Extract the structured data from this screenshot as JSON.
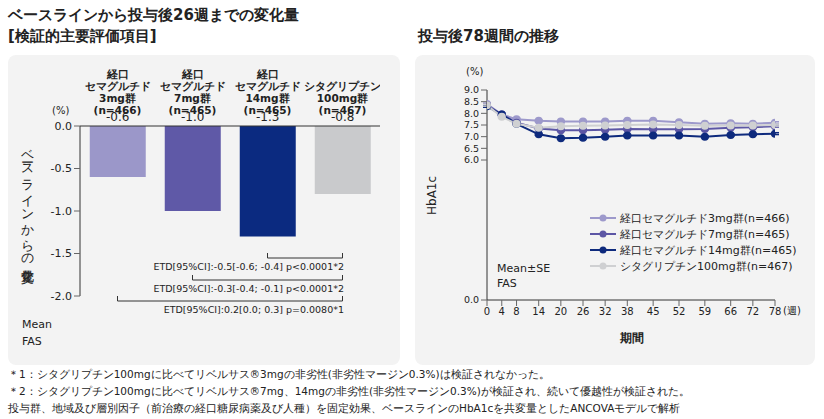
{
  "chart_data": [
    {
      "type": "bar",
      "title": "ベースラインから投与後26週までの変化量",
      "subtitle": "[検証的主要評価項目]",
      "categories": [
        "経口\nセマグルチド\n3mg群\n(n=466)",
        "経口\nセマグルチド\n7mg群\n(n=465)",
        "経口\nセマグルチド\n14mg群\n(n=465)",
        "シタグリプチン\n100mg群\n(n=467)"
      ],
      "values": [
        -0.6,
        -1.0,
        -1.3,
        -0.8
      ],
      "value_labels": [
        "-0.6",
        "-1.0",
        "-1.3",
        "-0.8"
      ],
      "colors": [
        "#9b97c9",
        "#5f59a7",
        "#0b2a80",
        "#c9cacc"
      ],
      "ylim": [
        -2.0,
        0.0
      ],
      "yticks": [
        {
          "value": 0,
          "label": "0.0"
        },
        -0.5,
        {
          "value": -1,
          "label": "-1.0"
        },
        -1.5,
        {
          "value": -2,
          "label": "-2.0"
        }
      ],
      "y_label": "ベースラインからの変化量",
      "y_unit": "(%)",
      "grid": false,
      "data_labels": true,
      "annotations": [
        "Mean",
        "FAS"
      ],
      "comparisons": [
        "ETD[95%CI]:-0.5[-0.6; -0.4] p<0.0001*2",
        "ETD[95%CI]:-0.3[-0.4; -0.1] p<0.0001*2",
        "ETD[95%CI]:0.2[0.0; 0.3] p=0.0080*1"
      ]
    },
    {
      "type": "line",
      "title": "投与後78週間の推移",
      "x": [
        0,
        4,
        8,
        14,
        20,
        26,
        32,
        38,
        45,
        52,
        59,
        66,
        72,
        78
      ],
      "xlim": [
        0,
        78
      ],
      "xticks": [
        0,
        4,
        8,
        14,
        20,
        26,
        32,
        38,
        45,
        52,
        59,
        66,
        72,
        78
      ],
      "x_label": "期間",
      "x_unit": "(週)",
      "ylim": [
        0,
        9.0
      ],
      "yticks": [
        {
          "value": 0,
          "label": "0.0"
        },
        {
          "value": 6,
          "label": "6.0"
        },
        6.5,
        {
          "value": 7,
          "label": "7.0"
        },
        7.5,
        {
          "value": 8,
          "label": "8.0"
        },
        8.5,
        {
          "value": 9,
          "label": "9.0"
        }
      ],
      "y_label": "HbA1c",
      "y_unit": "(%)",
      "grid": false,
      "marker": "circle",
      "legend": "lower right",
      "annotations": [
        "Mean±SE",
        "FAS"
      ],
      "series": [
        {
          "name": "経口セマグルチド3mg群(n=466)",
          "color": "#9d99cb",
          "values": [
            8.4,
            7.95,
            7.75,
            7.68,
            7.65,
            7.65,
            7.65,
            7.68,
            7.68,
            7.62,
            7.55,
            7.57,
            7.55,
            7.6
          ],
          "errors": [
            0.04,
            0.04,
            0.04,
            0.04,
            0.04,
            0.04,
            0.04,
            0.04,
            0.04,
            0.04,
            0.04,
            0.04,
            0.04,
            0.04
          ]
        },
        {
          "name": "経口セマグルチド7mg群(n=465)",
          "color": "#5c56a5",
          "values": [
            8.35,
            7.95,
            7.6,
            7.35,
            7.27,
            7.28,
            7.3,
            7.33,
            7.32,
            7.32,
            7.33,
            7.38,
            7.4,
            7.45
          ],
          "errors": [
            0.04,
            0.04,
            0.04,
            0.04,
            0.04,
            0.04,
            0.04,
            0.04,
            0.04,
            0.04,
            0.04,
            0.04,
            0.04,
            0.04
          ]
        },
        {
          "name": "経口セマグルチド14mg群(n=465)",
          "color": "#0e2a7d",
          "values": [
            8.3,
            7.95,
            7.55,
            7.1,
            6.93,
            6.95,
            7.0,
            7.05,
            7.05,
            7.05,
            7.0,
            7.07,
            7.1,
            7.13
          ],
          "errors": [
            0.04,
            0.04,
            0.04,
            0.04,
            0.04,
            0.04,
            0.04,
            0.04,
            0.04,
            0.04,
            0.04,
            0.04,
            0.04,
            0.04
          ]
        },
        {
          "name": "シタグリプチン100mg群(n=467)",
          "color": "#cfd0d2",
          "values": [
            8.35,
            7.85,
            7.55,
            7.38,
            7.45,
            7.47,
            7.48,
            7.5,
            7.52,
            7.5,
            7.47,
            7.48,
            7.48,
            7.5
          ],
          "errors": [
            0.04,
            0.04,
            0.04,
            0.04,
            0.04,
            0.04,
            0.04,
            0.04,
            0.04,
            0.04,
            0.04,
            0.04,
            0.04,
            0.04
          ]
        }
      ]
    }
  ],
  "footnotes": [
    "＊1：シタグリプチン100mgに比べてリベルサス®3mgの非劣性(非劣性マージン0.3%)は検証されなかった。",
    "＊2：シタグリプチン100mgに比べてリベルサス®7mg、14mgの非劣性(非劣性マージン0.3%)が検証され、続いて優越性が検証された。",
    "投与群、地域及び層別因子（前治療の経口糖尿病薬及び人種）を固定効果、ベースラインのHbA1cを共変量としたANCOVAモデルで解析"
  ]
}
